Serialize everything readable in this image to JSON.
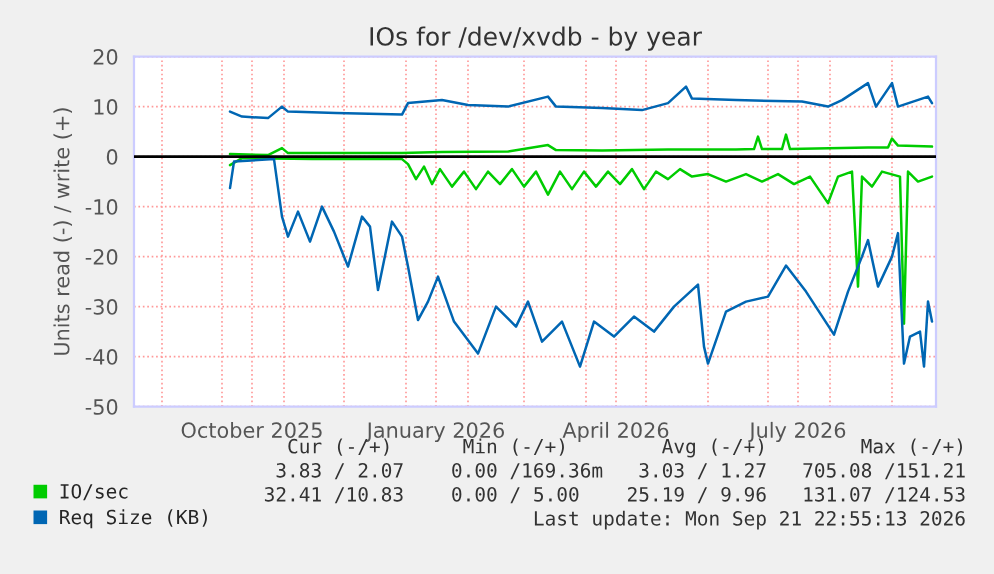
{
  "chart_data": {
    "type": "line",
    "title": "IOs for /dev/xvdb - by year",
    "ylabel": "Units read (-) / write (+)",
    "xlim": [
      "2025-08-18",
      "2026-09-23"
    ],
    "xticks": [
      {
        "value": "2025-09-01",
        "label": null
      },
      {
        "value": "2025-10-01",
        "label": null
      },
      {
        "value": "2025-11-01",
        "label": null
      },
      {
        "value": "2025-12-01",
        "label": null
      },
      {
        "value": "2026-01-01",
        "label": null
      },
      {
        "value": "2026-02-01",
        "label": null
      },
      {
        "value": "2026-03-01",
        "label": null
      },
      {
        "value": "2026-04-01",
        "label": null
      },
      {
        "value": "2026-05-01",
        "label": null
      },
      {
        "value": "2026-06-01",
        "label": null
      },
      {
        "value": "2026-07-01",
        "label": null
      },
      {
        "value": "2026-08-01",
        "label": null
      },
      {
        "value": "2026-09-01",
        "label": null
      },
      {
        "value": "2025-10-16",
        "label": "October 2025"
      },
      {
        "value": "2026-01-16",
        "label": "January 2026"
      },
      {
        "value": "2026-04-16",
        "label": "April 2026"
      },
      {
        "value": "2026-07-16",
        "label": "July 2026"
      }
    ],
    "ylim": [
      -50,
      20
    ],
    "yticks": [
      -50,
      -40,
      -30,
      -20,
      -10,
      0,
      10,
      20
    ],
    "grid": true,
    "legend": "bottom left",
    "ref_lines": [
      {
        "axis": "y",
        "value": 0,
        "label": null,
        "color": "#000000"
      }
    ],
    "series": [
      {
        "name": "IO/sec",
        "color": "#00cc00",
        "x": [
          "2025-10-05",
          "2025-10-24",
          "2025-10-31",
          "2025-11-03",
          "2025-12-30",
          "2026-01-19",
          "2026-02-21",
          "2026-03-13",
          "2026-03-17",
          "2026-04-09",
          "2026-05-12",
          "2026-06-15",
          "2026-06-24",
          "2026-06-26",
          "2026-06-28",
          "2026-07-08",
          "2026-07-10",
          "2026-07-12",
          "2026-08-20",
          "2026-08-30",
          "2026-09-01",
          "2026-09-04",
          "2026-09-21"
        ],
        "values": [
          0.5,
          0.3,
          1.7,
          0.7,
          0.7,
          0.9,
          1.0,
          2.3,
          1.3,
          1.2,
          1.4,
          1.4,
          1.5,
          4.0,
          1.5,
          1.5,
          4.4,
          1.5,
          1.8,
          1.8,
          3.6,
          2.2,
          2.0
        ]
      },
      {
        "color": "#00cc00",
        "x": [
          "2025-10-05",
          "2025-10-11",
          "2025-11-15",
          "2025-12-30",
          "2026-01-02",
          "2026-01-06",
          "2026-01-10",
          "2026-01-14",
          "2026-01-18",
          "2026-01-24",
          "2026-01-30",
          "2026-02-05",
          "2026-02-11",
          "2026-02-17",
          "2026-02-23",
          "2026-03-01",
          "2026-03-07",
          "2026-03-13",
          "2026-03-19",
          "2026-03-25",
          "2026-03-31",
          "2026-04-06",
          "2026-04-12",
          "2026-04-18",
          "2026-04-24",
          "2026-04-30",
          "2026-05-06",
          "2026-05-12",
          "2026-05-18",
          "2026-05-24",
          "2026-06-01",
          "2026-06-10",
          "2026-06-20",
          "2026-06-28",
          "2026-07-06",
          "2026-07-14",
          "2026-07-22",
          "2026-07-31",
          "2026-08-05",
          "2026-08-12",
          "2026-08-15",
          "2026-08-17",
          "2026-08-22",
          "2026-08-27",
          "2026-09-05",
          "2026-09-07",
          "2026-09-09",
          "2026-09-14",
          "2026-09-21"
        ],
        "values": [
          -1.7,
          -0.3,
          -0.5,
          -0.5,
          -1.5,
          -4.5,
          -2,
          -5.5,
          -2.5,
          -6,
          -3,
          -6.5,
          -3,
          -5.5,
          -2.5,
          -6,
          -3,
          -7.6,
          -3,
          -6.5,
          -3,
          -6,
          -3,
          -5.5,
          -2.5,
          -6.5,
          -3,
          -4.5,
          -2.5,
          -4,
          -3.5,
          -5,
          -3.5,
          -5,
          -3.5,
          -5.5,
          -4,
          -9.3,
          -4,
          -3,
          -26,
          -4,
          -6,
          -3,
          -4,
          -33.4,
          -3,
          -5,
          -4
        ]
      },
      {
        "name": "Req Size (KB)",
        "color": "#0066b3",
        "x": [
          "2025-10-05",
          "2025-10-11",
          "2025-10-24",
          "2025-10-31",
          "2025-11-03",
          "2025-11-27",
          "2025-12-30",
          "2026-01-02",
          "2026-01-19",
          "2026-02-01",
          "2026-02-21",
          "2026-03-13",
          "2026-03-17",
          "2026-04-09",
          "2026-04-29",
          "2026-05-12",
          "2026-05-21",
          "2026-05-24",
          "2026-06-15",
          "2026-07-18",
          "2026-07-31",
          "2026-08-07",
          "2026-08-20",
          "2026-08-24",
          "2026-09-01",
          "2026-09-04",
          "2026-09-19",
          "2026-09-21"
        ],
        "values": [
          9,
          8,
          7.7,
          10,
          9,
          8.7,
          8.4,
          10.7,
          11.3,
          10.3,
          10,
          12,
          10,
          9.7,
          9.3,
          10.7,
          14,
          11.6,
          11.3,
          11,
          10,
          11.3,
          14.7,
          10,
          14.7,
          10,
          12,
          10.7
        ]
      },
      {
        "color": "#0066b3",
        "x": [
          "2025-10-05",
          "2025-10-07",
          "2025-10-27",
          "2025-10-31",
          "2025-11-03",
          "2025-11-08",
          "2025-11-14",
          "2025-11-20",
          "2025-11-26",
          "2025-12-03",
          "2025-12-10",
          "2025-12-14",
          "2025-12-18",
          "2025-12-25",
          "2025-12-30",
          "2026-01-02",
          "2026-01-07",
          "2026-01-12",
          "2026-01-17",
          "2026-01-25",
          "2026-02-06",
          "2026-02-15",
          "2026-02-25",
          "2026-03-03",
          "2026-03-10",
          "2026-03-20",
          "2026-03-29",
          "2026-04-05",
          "2026-04-15",
          "2026-04-25",
          "2026-05-05",
          "2026-05-15",
          "2026-05-27",
          "2026-05-30",
          "2026-06-01",
          "2026-06-10",
          "2026-06-20",
          "2026-07-01",
          "2026-07-10",
          "2026-07-20",
          "2026-08-03",
          "2026-08-10",
          "2026-08-17",
          "2026-08-20",
          "2026-08-25",
          "2026-09-01",
          "2026-09-04",
          "2026-09-07",
          "2026-09-10",
          "2026-09-15",
          "2026-09-17",
          "2026-09-19",
          "2026-09-21"
        ],
        "values": [
          -6.3,
          -1,
          -0.5,
          -12,
          -16,
          -11,
          -17,
          -10,
          -15,
          -22,
          -12,
          -14,
          -26.7,
          -13,
          -16,
          -22,
          -32.7,
          -29,
          -24,
          -33,
          -39.4,
          -30,
          -34,
          -29,
          -37,
          -33,
          -42,
          -33,
          -36,
          -32,
          -35,
          -30,
          -25.6,
          -38,
          -41.4,
          -31,
          -29,
          -28,
          -21.8,
          -27,
          -35.6,
          -27,
          -20,
          -16.7,
          -26,
          -20,
          -15.3,
          -41.4,
          -36,
          -35,
          -42,
          -29,
          -33
        ]
      }
    ],
    "annotations": [
      "Cur (-/+)      Min (-/+)        Avg (-/+)        Max (-/+)",
      "3.83 / 2.07    0.00 /169.36m   3.03 / 1.27   705.08 /151.21",
      "32.41 /10.83    0.00 / 5.00    25.19 / 9.96   131.07 /124.53",
      "Last update: Mon Sep 21 22:55:13 2026"
    ]
  }
}
